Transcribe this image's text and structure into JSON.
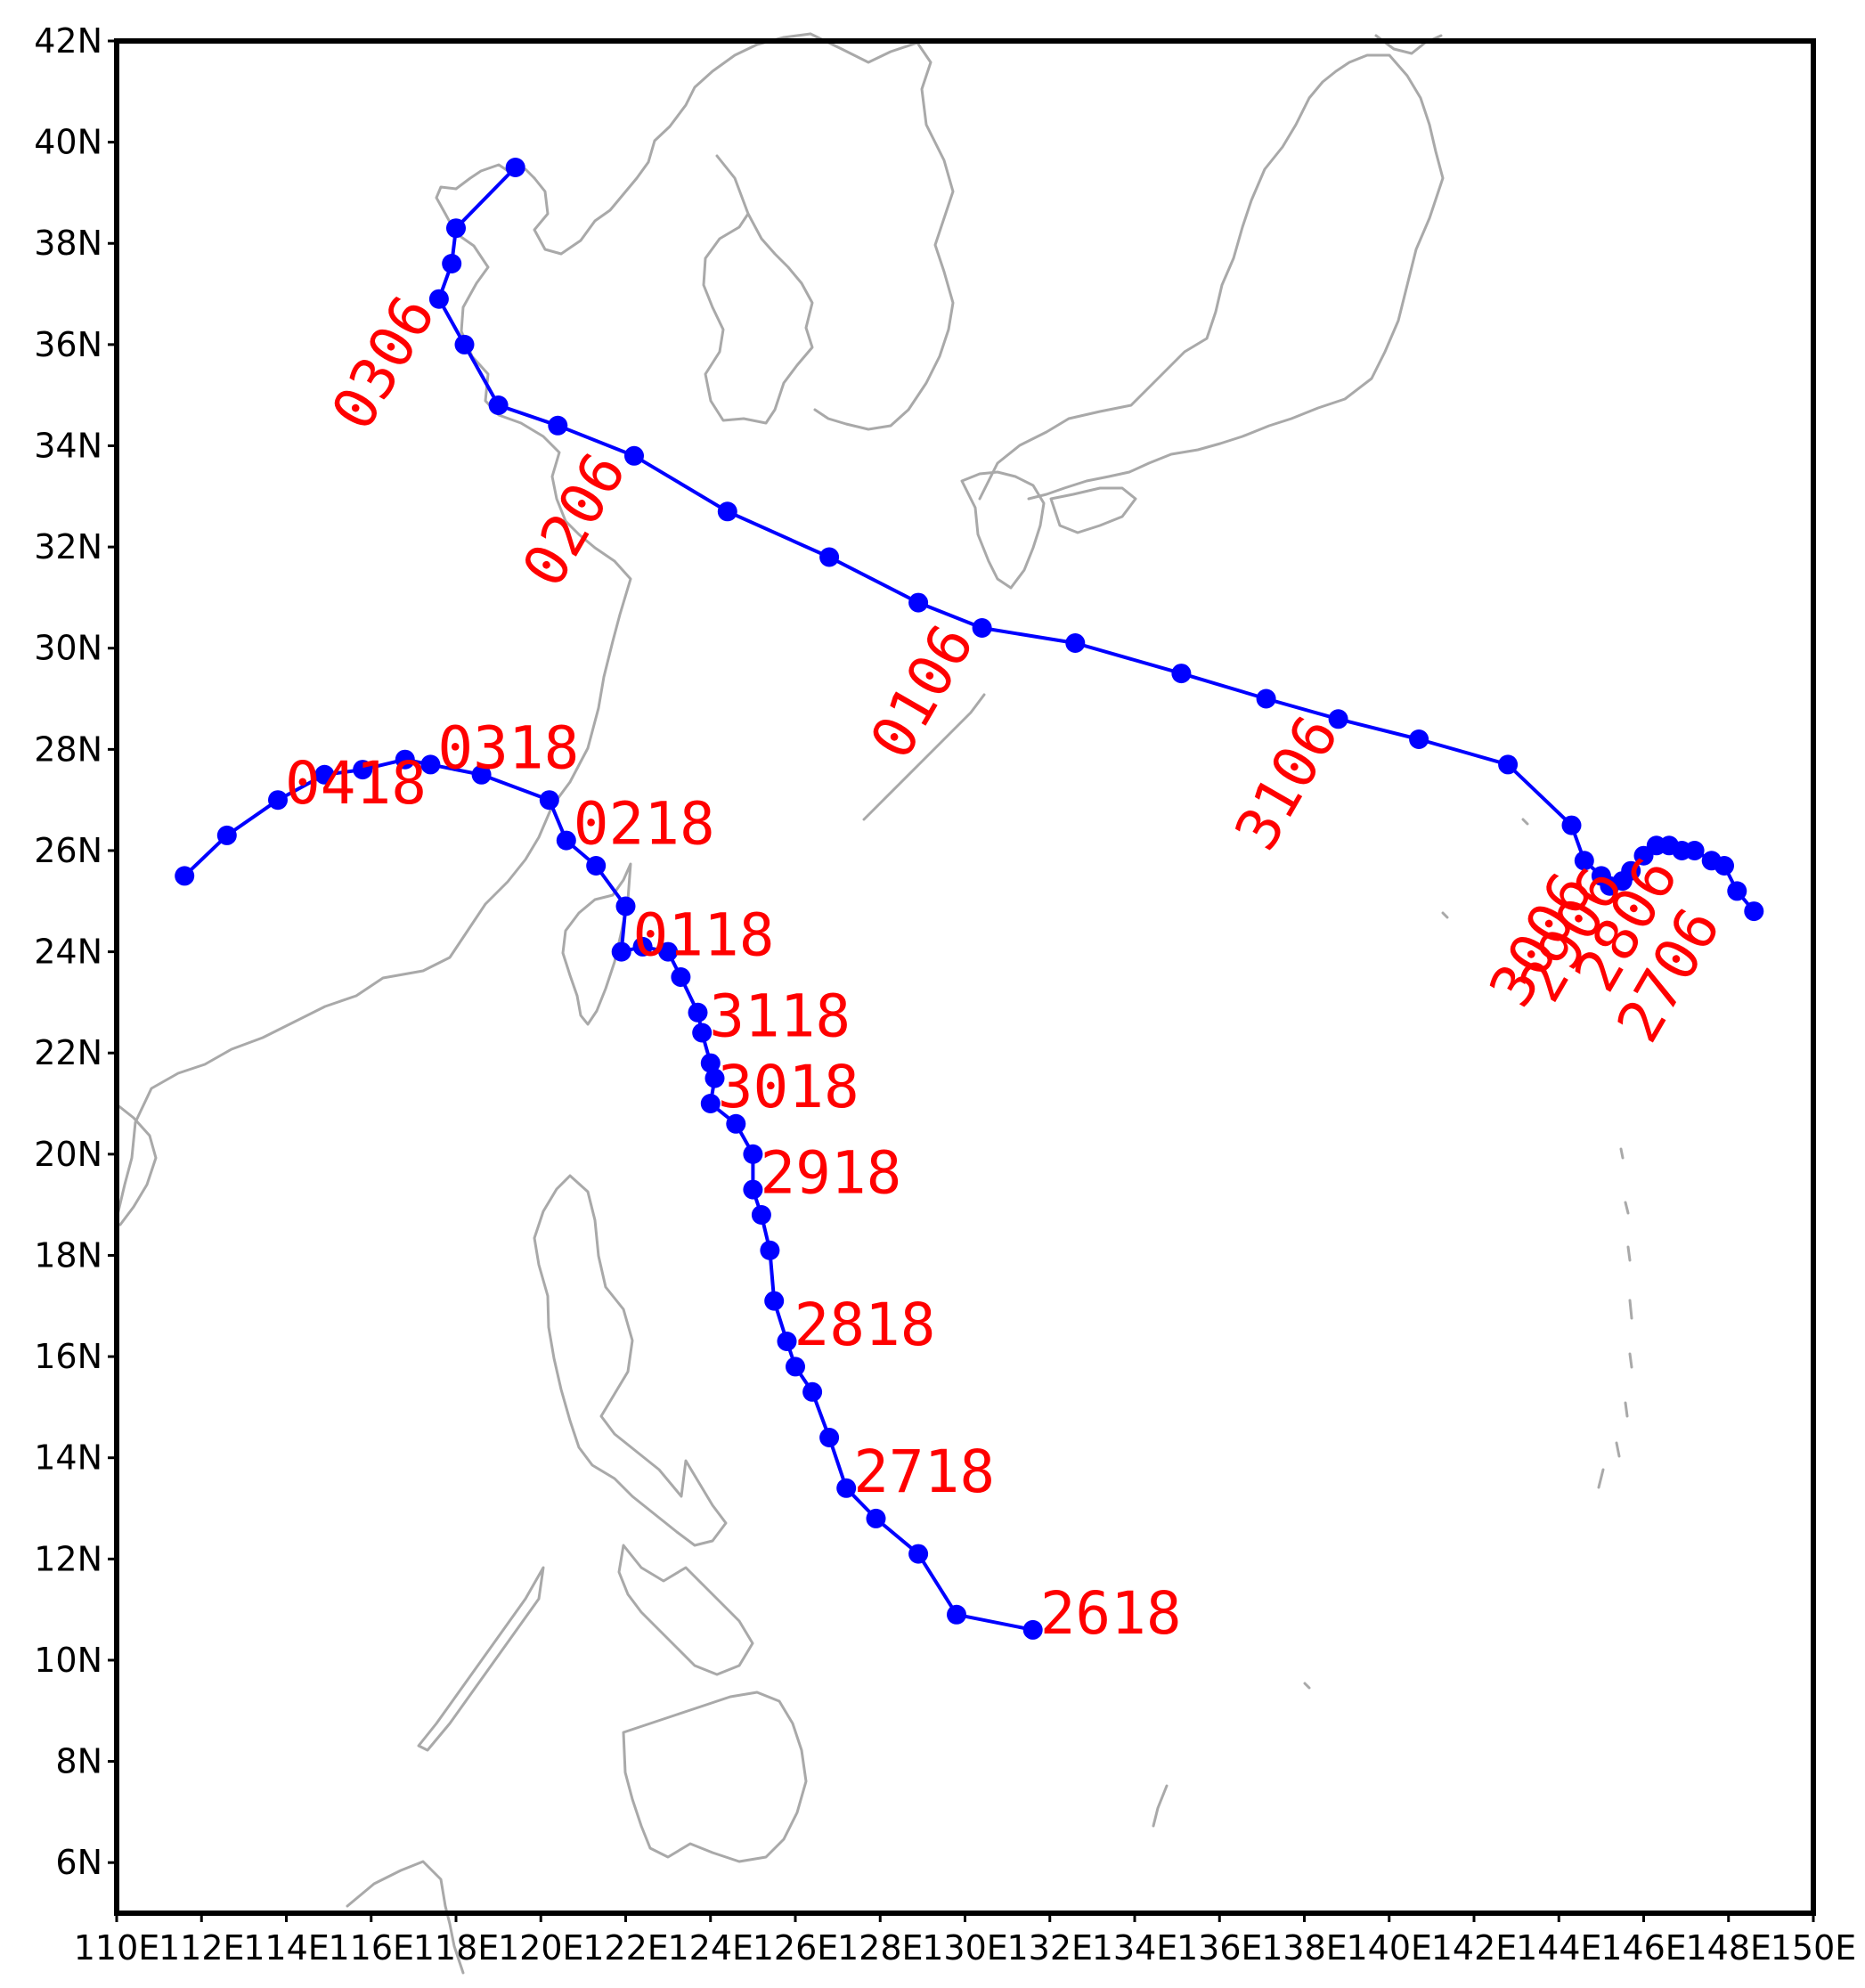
{
  "map": {
    "region": "Western North Pacific",
    "lon_range": [
      110,
      150
    ],
    "lat_range": [
      5,
      42
    ],
    "colors": {
      "track": "#0000ff",
      "labels": "#ff0000",
      "coastline": "#a9a9a9",
      "frame": "#000000"
    },
    "x_ticks": [
      "110E",
      "112E",
      "114E",
      "116E",
      "118E",
      "120E",
      "122E",
      "124E",
      "126E",
      "128E",
      "130E",
      "132E",
      "134E",
      "136E",
      "138E",
      "140E",
      "142E",
      "144E",
      "146E",
      "148E",
      "150E"
    ],
    "y_ticks": [
      "6N",
      "8N",
      "10N",
      "12N",
      "14N",
      "16N",
      "18N",
      "20N",
      "22N",
      "24N",
      "26N",
      "28N",
      "30N",
      "32N",
      "34N",
      "36N",
      "38N",
      "40N",
      "42N"
    ]
  },
  "tracks": [
    {
      "points": [
        [
          131.6,
          10.6
        ],
        [
          129.8,
          10.9
        ],
        [
          128.9,
          12.1
        ],
        [
          127.9,
          12.8
        ],
        [
          127.2,
          13.4
        ],
        [
          126.8,
          14.4
        ],
        [
          126.4,
          15.3
        ],
        [
          126.0,
          15.8
        ],
        [
          125.8,
          16.3
        ],
        [
          125.5,
          17.1
        ],
        [
          125.4,
          18.1
        ],
        [
          125.2,
          18.8
        ],
        [
          125.0,
          19.3
        ],
        [
          125.0,
          20.0
        ],
        [
          124.6,
          20.6
        ],
        [
          124.0,
          21.0
        ],
        [
          124.1,
          21.5
        ],
        [
          124.0,
          21.8
        ],
        [
          123.8,
          22.4
        ],
        [
          123.7,
          22.8
        ],
        [
          123.3,
          23.5
        ],
        [
          123.0,
          24.0
        ],
        [
          122.4,
          24.1
        ],
        [
          121.9,
          24.0
        ],
        [
          122.0,
          24.9
        ],
        [
          121.3,
          25.7
        ],
        [
          120.6,
          26.2
        ],
        [
          120.2,
          27.0
        ],
        [
          118.6,
          27.5
        ],
        [
          117.4,
          27.7
        ],
        [
          116.8,
          27.8
        ],
        [
          115.8,
          27.6
        ],
        [
          114.9,
          27.5
        ],
        [
          113.8,
          27.0
        ],
        [
          112.6,
          26.3
        ],
        [
          111.6,
          25.5
        ]
      ],
      "labels": [
        {
          "text": "2618",
          "lon": 131.6,
          "lat": 10.6,
          "rotate": 0
        },
        {
          "text": "2718",
          "lon": 127.2,
          "lat": 13.4,
          "rotate": 0
        },
        {
          "text": "2818",
          "lon": 125.8,
          "lat": 16.3,
          "rotate": 0
        },
        {
          "text": "2918",
          "lon": 125.0,
          "lat": 19.3,
          "rotate": 0
        },
        {
          "text": "3018",
          "lon": 124.0,
          "lat": 21.0,
          "rotate": 0
        },
        {
          "text": "3118",
          "lon": 123.8,
          "lat": 22.4,
          "rotate": 0
        },
        {
          "text": "0118",
          "lon": 122.0,
          "lat": 24.0,
          "rotate": 0
        },
        {
          "text": "0218",
          "lon": 120.6,
          "lat": 26.2,
          "rotate": 0
        },
        {
          "text": "0318",
          "lon": 117.4,
          "lat": 27.7,
          "rotate": 0
        },
        {
          "text": "0418",
          "lon": 113.8,
          "lat": 27.0,
          "rotate": 0
        }
      ]
    },
    {
      "points": [
        [
          148.6,
          24.8
        ],
        [
          148.2,
          25.2
        ],
        [
          147.9,
          25.7
        ],
        [
          147.6,
          25.8
        ],
        [
          147.2,
          26.0
        ],
        [
          146.9,
          26.0
        ],
        [
          146.6,
          26.1
        ],
        [
          146.3,
          26.1
        ],
        [
          146.0,
          25.9
        ],
        [
          145.7,
          25.6
        ],
        [
          145.5,
          25.4
        ],
        [
          145.2,
          25.3
        ],
        [
          145.0,
          25.5
        ],
        [
          144.6,
          25.8
        ],
        [
          144.3,
          26.5
        ],
        [
          142.8,
          27.7
        ],
        [
          140.7,
          28.2
        ],
        [
          138.8,
          28.6
        ],
        [
          137.1,
          29.0
        ],
        [
          135.1,
          29.5
        ],
        [
          132.6,
          30.1
        ],
        [
          130.4,
          30.4
        ],
        [
          128.9,
          30.9
        ],
        [
          126.8,
          31.8
        ],
        [
          124.4,
          32.7
        ],
        [
          122.2,
          33.8
        ],
        [
          120.4,
          34.4
        ],
        [
          119.0,
          34.8
        ],
        [
          118.2,
          36.0
        ],
        [
          117.6,
          36.9
        ],
        [
          117.9,
          37.6
        ],
        [
          118.0,
          38.3
        ],
        [
          119.4,
          39.5
        ]
      ],
      "labels": [
        {
          "text": "2706",
          "lon": 148.0,
          "lat": 24.8,
          "rotate": -60
        },
        {
          "text": "2806",
          "lon": 147.0,
          "lat": 25.8,
          "rotate": -60
        },
        {
          "text": "2906",
          "lon": 145.7,
          "lat": 25.6,
          "rotate": -60
        },
        {
          "text": "3006",
          "lon": 145.0,
          "lat": 25.5,
          "rotate": -60
        },
        {
          "text": "3106",
          "lon": 139.0,
          "lat": 28.6,
          "rotate": -60
        },
        {
          "text": "0106",
          "lon": 130.4,
          "lat": 30.4,
          "rotate": -60
        },
        {
          "text": "0206",
          "lon": 122.2,
          "lat": 33.8,
          "rotate": -60
        },
        {
          "text": "0306",
          "lon": 117.7,
          "lat": 36.9,
          "rotate": -60
        }
      ]
    }
  ]
}
